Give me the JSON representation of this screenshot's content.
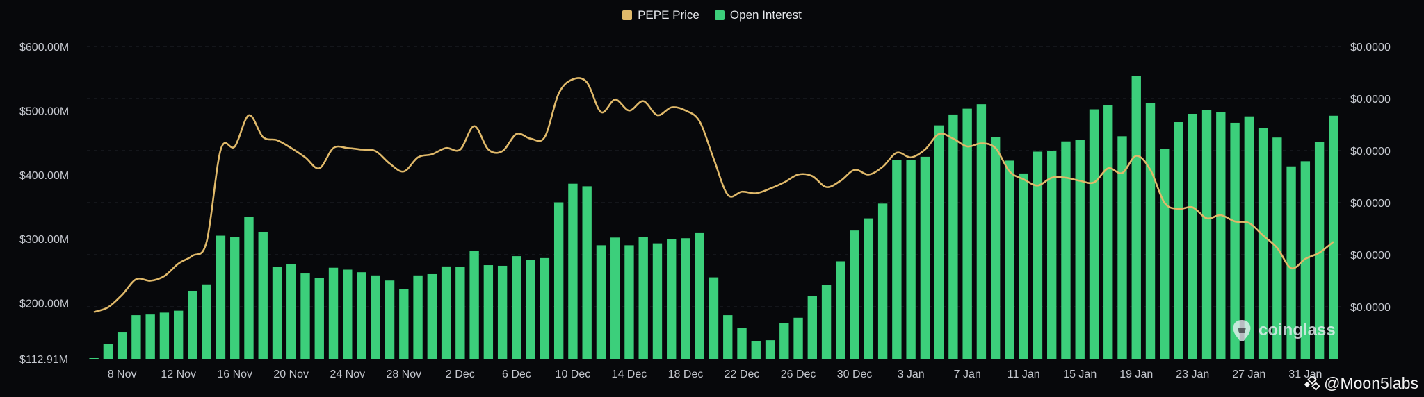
{
  "legend": {
    "price_label": "PEPE Price",
    "oi_label": "Open Interest"
  },
  "colors": {
    "price": "#e0b96a",
    "oi": "#3ccf7b",
    "background": "#07080b",
    "grid": "#22252b"
  },
  "watermark": {
    "text": "coinglass",
    "icon": "coinglass-logo-icon"
  },
  "credit": {
    "text": "@Moon5labs",
    "icon": "binance-square-icon"
  },
  "chart_data": {
    "type": "bar",
    "left_axis": {
      "ticks": [
        112.91,
        200,
        300,
        400,
        500,
        600
      ],
      "tick_labels": [
        "$112.91M",
        "$200.00M",
        "$300.00M",
        "$400.00M",
        "$500.00M",
        "$600.00M"
      ],
      "range": [
        112.91,
        600
      ]
    },
    "right_axis": {
      "tick_labels": [
        "$0.0000",
        "$0.0000",
        "$0.0000",
        "$0.0000",
        "$0.0000",
        "$0.0000"
      ],
      "range": [
        0,
        1
      ]
    },
    "x_tick_labels": [
      "8 Nov",
      "12 Nov",
      "16 Nov",
      "20 Nov",
      "24 Nov",
      "28 Nov",
      "2 Dec",
      "6 Dec",
      "10 Dec",
      "14 Dec",
      "18 Dec",
      "22 Dec",
      "26 Dec",
      "30 Dec",
      "3 Jan",
      "7 Jan",
      "11 Jan",
      "15 Jan",
      "19 Jan",
      "23 Jan",
      "27 Jan",
      "31 Jan"
    ],
    "x_tick_first_bar": 2,
    "x_tick_step": 4,
    "series": [
      {
        "name": "Open Interest",
        "type": "bar",
        "axis": "left",
        "values": [
          114,
          136,
          154,
          181,
          182,
          185,
          188,
          219,
          229,
          305,
          303,
          334,
          311,
          256,
          261,
          246,
          239,
          255,
          252,
          248,
          243,
          235,
          222,
          243,
          245,
          257,
          256,
          281,
          259,
          258,
          273,
          267,
          270,
          357,
          386,
          382,
          290,
          302,
          290,
          303,
          293,
          300,
          301,
          310,
          240,
          181,
          161,
          141,
          142,
          169,
          177,
          211,
          228,
          265,
          313,
          332,
          355,
          423,
          423,
          428,
          477,
          494,
          503,
          510,
          459,
          422,
          402,
          436,
          437,
          452,
          454,
          502,
          508,
          460,
          554,
          512,
          440,
          482,
          495,
          501,
          498,
          481,
          491,
          473,
          458,
          413,
          421,
          451,
          492
        ]
      },
      {
        "name": "PEPE Price",
        "type": "line",
        "axis": "right",
        "values": [
          0.15,
          0.165,
          0.205,
          0.255,
          0.25,
          0.265,
          0.305,
          0.33,
          0.375,
          0.67,
          0.68,
          0.78,
          0.71,
          0.7,
          0.675,
          0.645,
          0.61,
          0.675,
          0.675,
          0.67,
          0.665,
          0.625,
          0.6,
          0.645,
          0.655,
          0.675,
          0.67,
          0.745,
          0.67,
          0.665,
          0.72,
          0.705,
          0.71,
          0.85,
          0.895,
          0.885,
          0.79,
          0.83,
          0.795,
          0.825,
          0.78,
          0.805,
          0.795,
          0.76,
          0.64,
          0.525,
          0.535,
          0.53,
          0.545,
          0.565,
          0.59,
          0.585,
          0.55,
          0.57,
          0.605,
          0.59,
          0.615,
          0.66,
          0.645,
          0.67,
          0.72,
          0.705,
          0.68,
          0.69,
          0.675,
          0.6,
          0.575,
          0.555,
          0.58,
          0.58,
          0.57,
          0.565,
          0.61,
          0.595,
          0.65,
          0.605,
          0.5,
          0.48,
          0.485,
          0.45,
          0.46,
          0.44,
          0.435,
          0.395,
          0.355,
          0.29,
          0.32,
          0.34,
          0.375
        ]
      }
    ]
  }
}
